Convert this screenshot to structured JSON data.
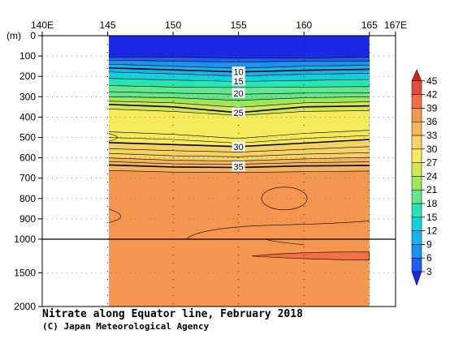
{
  "chart_data": {
    "type": "heatmap",
    "title": "Nitrate along Equator line, February 2018",
    "credit": "(C) Japan Meteorological Agency",
    "x_axis": {
      "ticks": [
        "140E",
        "145",
        "150",
        "155",
        "160",
        "165",
        "167E"
      ],
      "tick_values": [
        140,
        145,
        150,
        155,
        160,
        165,
        167
      ],
      "range": [
        140,
        167
      ],
      "data_range": [
        145,
        165
      ]
    },
    "y_axis": {
      "unit_label": "(m)",
      "ticks": [
        "0",
        "100",
        "200",
        "300",
        "400",
        "500",
        "600",
        "700",
        "800",
        "900",
        "1000",
        "1500",
        "2000"
      ],
      "upper_range": [
        0,
        1000
      ],
      "lower_range": [
        1000,
        2000
      ],
      "scale_break_at": 1000
    },
    "colorbar": {
      "ticks": [
        "3",
        "6",
        "9",
        "12",
        "15",
        "18",
        "21",
        "24",
        "27",
        "30",
        "33",
        "36",
        "39",
        "42",
        "45"
      ],
      "tick_values": [
        3,
        6,
        9,
        12,
        15,
        18,
        21,
        24,
        27,
        30,
        33,
        36,
        39,
        42,
        45
      ],
      "colors": [
        "#1a28e6",
        "#1e5ef0",
        "#1e90f0",
        "#14b4f0",
        "#14d2dc",
        "#28e6b4",
        "#64e68c",
        "#a0e65a",
        "#d2e650",
        "#f5eb5a",
        "#f5d264",
        "#f5b45a",
        "#f59650",
        "#f56e46",
        "#eb4b3c",
        "#d21e1e"
      ]
    },
    "contour_labels": [
      {
        "text": "10",
        "x": 155,
        "depth": 180,
        "value": 10
      },
      {
        "text": "15",
        "x": 155,
        "depth": 225,
        "value": 15
      },
      {
        "text": "20",
        "x": 155,
        "depth": 285,
        "value": 20
      },
      {
        "text": "25",
        "x": 155,
        "depth": 380,
        "value": 25
      },
      {
        "text": "30",
        "x": 155,
        "depth": 548,
        "value": 30
      },
      {
        "text": "35",
        "x": 155,
        "depth": 645,
        "value": 35
      }
    ],
    "contours": [
      {
        "value": 3,
        "points": [
          [
            145,
            105
          ],
          [
            150,
            105
          ],
          [
            155,
            110
          ],
          [
            160,
            110
          ],
          [
            165,
            105
          ]
        ]
      },
      {
        "value": 6,
        "points": [
          [
            145,
            120
          ],
          [
            150,
            125
          ],
          [
            155,
            130
          ],
          [
            160,
            125
          ],
          [
            165,
            125
          ]
        ]
      },
      {
        "value": 9,
        "points": [
          [
            145,
            140
          ],
          [
            150,
            150
          ],
          [
            155,
            160
          ],
          [
            160,
            150
          ],
          [
            165,
            145
          ]
        ]
      },
      {
        "value": 10,
        "points": [
          [
            145,
            158
          ],
          [
            150,
            168
          ],
          [
            155,
            178
          ],
          [
            160,
            170
          ],
          [
            165,
            165
          ]
        ]
      },
      {
        "value": 12,
        "points": [
          [
            145,
            178
          ],
          [
            150,
            188
          ],
          [
            155,
            198
          ],
          [
            160,
            190
          ],
          [
            165,
            185
          ]
        ]
      },
      {
        "value": 15,
        "points": [
          [
            145,
            210
          ],
          [
            150,
            218
          ],
          [
            155,
            225
          ],
          [
            160,
            220
          ],
          [
            165,
            215
          ]
        ]
      },
      {
        "value": 18,
        "points": [
          [
            145,
            245
          ],
          [
            150,
            252
          ],
          [
            155,
            255
          ],
          [
            160,
            252
          ],
          [
            165,
            250
          ]
        ]
      },
      {
        "value": 20,
        "points": [
          [
            145,
            275
          ],
          [
            150,
            282
          ],
          [
            155,
            288
          ],
          [
            160,
            282
          ],
          [
            165,
            280
          ]
        ]
      },
      {
        "value": 22,
        "points": [
          [
            145,
            300
          ],
          [
            150,
            305
          ],
          [
            155,
            318
          ],
          [
            160,
            305
          ],
          [
            165,
            300
          ]
        ]
      },
      {
        "value": 24,
        "points": [
          [
            145,
            322
          ],
          [
            150,
            330
          ],
          [
            155,
            352
          ],
          [
            160,
            330
          ],
          [
            165,
            325
          ]
        ]
      },
      {
        "value": 25,
        "points": [
          [
            145,
            338
          ],
          [
            150,
            350
          ],
          [
            155,
            378
          ],
          [
            160,
            350
          ],
          [
            165,
            345
          ]
        ]
      },
      {
        "value": 27,
        "points": [
          [
            145,
            360
          ],
          [
            150,
            372
          ],
          [
            155,
            392
          ],
          [
            160,
            372
          ],
          [
            165,
            368
          ]
        ]
      },
      {
        "value": 28,
        "points": [
          [
            145,
            472
          ],
          [
            150,
            485
          ],
          [
            155,
            505
          ],
          [
            160,
            480
          ],
          [
            165,
            465
          ]
        ]
      },
      {
        "value": 29,
        "points": [
          [
            145,
            500
          ],
          [
            150,
            510
          ],
          [
            155,
            528
          ],
          [
            160,
            505
          ],
          [
            165,
            490
          ]
        ]
      },
      {
        "value": 30,
        "points": [
          [
            145,
            525
          ],
          [
            150,
            535
          ],
          [
            155,
            545
          ],
          [
            160,
            528
          ],
          [
            165,
            510
          ]
        ]
      },
      {
        "value": 31,
        "points": [
          [
            145,
            555
          ],
          [
            150,
            565
          ],
          [
            155,
            572
          ],
          [
            160,
            558
          ],
          [
            165,
            545
          ]
        ]
      },
      {
        "value": 32,
        "points": [
          [
            145,
            578
          ],
          [
            150,
            590
          ],
          [
            155,
            595
          ],
          [
            160,
            582
          ],
          [
            165,
            575
          ]
        ]
      },
      {
        "value": 33,
        "points": [
          [
            145,
            600
          ],
          [
            150,
            612
          ],
          [
            155,
            615
          ],
          [
            160,
            605
          ],
          [
            165,
            598
          ]
        ]
      },
      {
        "value": 34,
        "points": [
          [
            145,
            618
          ],
          [
            150,
            630
          ],
          [
            155,
            632
          ],
          [
            160,
            624
          ],
          [
            165,
            620
          ]
        ]
      },
      {
        "value": 35,
        "points": [
          [
            145,
            635
          ],
          [
            150,
            645
          ],
          [
            155,
            648
          ],
          [
            160,
            640
          ],
          [
            165,
            638
          ]
        ]
      },
      {
        "value": 36,
        "points": [
          [
            145,
            662
          ],
          [
            150,
            670
          ],
          [
            155,
            672
          ],
          [
            160,
            668
          ],
          [
            165,
            665
          ]
        ]
      }
    ],
    "bold_contours": [
      10,
      25,
      30,
      35
    ],
    "ylim": [
      0,
      2000
    ],
    "xlim": [
      140,
      167
    ],
    "grid": true
  }
}
